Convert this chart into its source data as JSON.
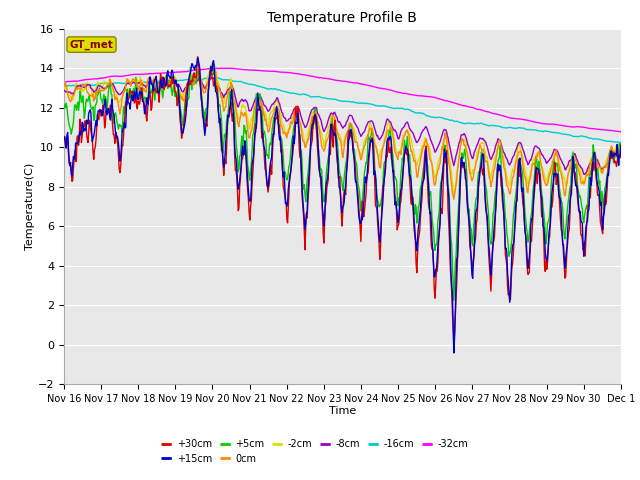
{
  "title": "Temperature Profile B",
  "xlabel": "Time",
  "ylabel": "Temperature(C)",
  "ylim": [
    -2,
    16
  ],
  "yticks": [
    -2,
    0,
    2,
    4,
    6,
    8,
    10,
    12,
    14,
    16
  ],
  "x_labels": [
    "Nov 16",
    "Nov 17",
    "Nov 18",
    "Nov 19",
    "Nov 20",
    "Nov 21",
    "Nov 22",
    "Nov 23",
    "Nov 24",
    "Nov 25",
    "Nov 26",
    "Nov 27",
    "Nov 28",
    "Nov 29",
    "Nov 30",
    "Dec 1"
  ],
  "series_colors": {
    "+30cm": "#dd0000",
    "+15cm": "#0000cc",
    "+5cm": "#00cc00",
    "0cm": "#ff8800",
    "-2cm": "#dddd00",
    "-8cm": "#9900cc",
    "-16cm": "#00cccc",
    "-32cm": "#ff00ff"
  },
  "legend_label": "GT_met",
  "legend_box_facecolor": "#dddd00",
  "legend_box_edgecolor": "#888800",
  "legend_text_color": "#880000",
  "plot_bg_color": "#e8e8e8",
  "fig_bg_color": "#ffffff",
  "grid_color": "#ffffff",
  "title_fontsize": 10,
  "axis_label_fontsize": 8,
  "tick_fontsize": 7,
  "legend_fontsize": 7,
  "linewidth": 1.0
}
